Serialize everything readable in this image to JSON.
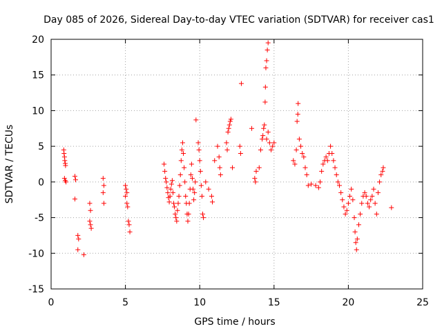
{
  "chart_data": {
    "type": "scatter",
    "title": "Day 085 of 2026, Sidereal Day-to-day VTEC variation (SDTVAR) for receiver cas1",
    "xlabel": "GPS time / hours",
    "ylabel": "SDTVAR / TECUs",
    "xlim": [
      0,
      25
    ],
    "ylim": [
      -15,
      20
    ],
    "xticks": [
      0,
      5,
      10,
      15,
      20,
      25
    ],
    "yticks": [
      -15,
      -10,
      -5,
      0,
      5,
      10,
      15,
      20
    ],
    "xtick_labels": [
      "0",
      "5",
      "10",
      "15",
      "20",
      "25"
    ],
    "ytick_labels": [
      "-15",
      "-10",
      "-5",
      "0",
      "5",
      "10",
      "15",
      "20"
    ],
    "grid": true,
    "marker": "+",
    "series": [
      {
        "name": "SDTVAR",
        "color": "#ff0000",
        "points": [
          [
            0.85,
            4.5
          ],
          [
            0.87,
            4.0
          ],
          [
            0.9,
            3.5
          ],
          [
            0.92,
            3.0
          ],
          [
            0.95,
            2.6
          ],
          [
            0.97,
            2.3
          ],
          [
            0.9,
            0.5
          ],
          [
            0.95,
            0.2
          ],
          [
            1.0,
            0.0
          ],
          [
            1.6,
            0.8
          ],
          [
            1.65,
            0.3
          ],
          [
            1.6,
            -2.4
          ],
          [
            1.8,
            -7.5
          ],
          [
            1.85,
            -8.0
          ],
          [
            1.8,
            -9.5
          ],
          [
            2.2,
            -10.2
          ],
          [
            2.6,
            -3.0
          ],
          [
            2.65,
            -4.0
          ],
          [
            2.6,
            -5.5
          ],
          [
            2.65,
            -6.0
          ],
          [
            2.7,
            -6.5
          ],
          [
            3.5,
            0.5
          ],
          [
            3.55,
            -0.5
          ],
          [
            3.5,
            -1.5
          ],
          [
            3.55,
            -3.0
          ],
          [
            5.0,
            -0.5
          ],
          [
            5.05,
            -1.0
          ],
          [
            5.1,
            -1.5
          ],
          [
            5.0,
            -2.0
          ],
          [
            5.1,
            -3.0
          ],
          [
            5.15,
            -3.5
          ],
          [
            5.2,
            -5.5
          ],
          [
            5.25,
            -6.0
          ],
          [
            5.3,
            -7.0
          ],
          [
            7.6,
            2.5
          ],
          [
            7.65,
            1.5
          ],
          [
            7.7,
            0.5
          ],
          [
            7.75,
            0.0
          ],
          [
            7.8,
            -0.8
          ],
          [
            7.85,
            -1.5
          ],
          [
            7.9,
            -2.2
          ],
          [
            7.95,
            -2.8
          ],
          [
            8.0,
            -2.0
          ],
          [
            8.05,
            -1.0
          ],
          [
            8.1,
            -0.3
          ],
          [
            8.15,
            0.2
          ],
          [
            8.2,
            -1.5
          ],
          [
            8.25,
            -3.0
          ],
          [
            8.3,
            -3.5
          ],
          [
            8.35,
            -4.5
          ],
          [
            8.4,
            -5.0
          ],
          [
            8.45,
            -5.5
          ],
          [
            8.5,
            -4.0
          ],
          [
            8.55,
            -3.0
          ],
          [
            8.6,
            -2.0
          ],
          [
            8.65,
            -0.5
          ],
          [
            8.7,
            1.0
          ],
          [
            8.75,
            3.0
          ],
          [
            8.8,
            4.5
          ],
          [
            8.85,
            5.5
          ],
          [
            8.9,
            4.0
          ],
          [
            8.95,
            2.0
          ],
          [
            9.0,
            0.0
          ],
          [
            9.05,
            -2.0
          ],
          [
            9.1,
            -3.0
          ],
          [
            9.15,
            -4.5
          ],
          [
            9.2,
            -5.5
          ],
          [
            9.25,
            -4.5
          ],
          [
            9.3,
            -3.0
          ],
          [
            9.35,
            -1.0
          ],
          [
            9.4,
            1.0
          ],
          [
            9.45,
            2.5
          ],
          [
            9.5,
            0.5
          ],
          [
            9.55,
            -1.0
          ],
          [
            9.6,
            -2.5
          ],
          [
            9.65,
            -1.5
          ],
          [
            9.7,
            0.0
          ],
          [
            9.75,
            8.7
          ],
          [
            9.9,
            5.5
          ],
          [
            9.95,
            4.5
          ],
          [
            10.0,
            3.0
          ],
          [
            10.05,
            1.5
          ],
          [
            10.1,
            -0.5
          ],
          [
            10.15,
            -2.0
          ],
          [
            10.2,
            -4.5
          ],
          [
            10.25,
            -5.0
          ],
          [
            10.4,
            0.0
          ],
          [
            10.6,
            -1.0
          ],
          [
            10.8,
            -2.0
          ],
          [
            10.85,
            -2.8
          ],
          [
            11.0,
            3.0
          ],
          [
            11.2,
            5.0
          ],
          [
            11.3,
            3.5
          ],
          [
            11.35,
            2.0
          ],
          [
            11.4,
            1.0
          ],
          [
            11.8,
            5.5
          ],
          [
            11.85,
            4.5
          ],
          [
            11.9,
            7.0
          ],
          [
            11.95,
            7.5
          ],
          [
            12.0,
            8.0
          ],
          [
            12.05,
            8.5
          ],
          [
            12.1,
            8.8
          ],
          [
            12.2,
            2.0
          ],
          [
            12.7,
            5.0
          ],
          [
            12.75,
            4.0
          ],
          [
            12.8,
            13.8
          ],
          [
            13.5,
            7.5
          ],
          [
            13.7,
            0.5
          ],
          [
            13.75,
            0.0
          ],
          [
            13.8,
            1.5
          ],
          [
            14.0,
            2.0
          ],
          [
            14.1,
            4.5
          ],
          [
            14.2,
            6.0
          ],
          [
            14.25,
            6.5
          ],
          [
            14.3,
            7.5
          ],
          [
            14.35,
            8.0
          ],
          [
            14.4,
            11.2
          ],
          [
            14.42,
            13.3
          ],
          [
            14.45,
            16.0
          ],
          [
            14.5,
            17.0
          ],
          [
            14.55,
            18.5
          ],
          [
            14.6,
            19.5
          ],
          [
            14.5,
            6.0
          ],
          [
            14.6,
            7.0
          ],
          [
            14.7,
            5.5
          ],
          [
            14.8,
            4.5
          ],
          [
            14.9,
            5.0
          ],
          [
            15.0,
            5.5
          ],
          [
            16.3,
            3.0
          ],
          [
            16.4,
            2.5
          ],
          [
            16.5,
            4.5
          ],
          [
            16.55,
            8.5
          ],
          [
            16.6,
            9.5
          ],
          [
            16.62,
            11.0
          ],
          [
            16.7,
            6.0
          ],
          [
            16.8,
            5.0
          ],
          [
            16.9,
            4.0
          ],
          [
            17.0,
            3.5
          ],
          [
            17.1,
            2.0
          ],
          [
            17.2,
            1.0
          ],
          [
            17.3,
            -0.5
          ],
          [
            17.5,
            -0.3
          ],
          [
            17.8,
            -0.5
          ],
          [
            18.0,
            -0.8
          ],
          [
            18.1,
            0.0
          ],
          [
            18.2,
            1.5
          ],
          [
            18.3,
            2.5
          ],
          [
            18.4,
            3.0
          ],
          [
            18.5,
            3.5
          ],
          [
            18.6,
            3.0
          ],
          [
            18.7,
            4.0
          ],
          [
            18.8,
            5.0
          ],
          [
            18.9,
            4.0
          ],
          [
            19.0,
            3.0
          ],
          [
            19.1,
            2.0
          ],
          [
            19.2,
            1.0
          ],
          [
            19.3,
            0.0
          ],
          [
            19.4,
            -0.5
          ],
          [
            19.5,
            -1.5
          ],
          [
            19.6,
            -2.5
          ],
          [
            19.7,
            -3.5
          ],
          [
            19.8,
            -4.5
          ],
          [
            19.9,
            -4.0
          ],
          [
            20.0,
            -3.0
          ],
          [
            20.1,
            -2.0
          ],
          [
            20.2,
            -1.0
          ],
          [
            20.3,
            -2.5
          ],
          [
            20.4,
            -5.0
          ],
          [
            20.45,
            -7.0
          ],
          [
            20.5,
            -8.5
          ],
          [
            20.55,
            -9.5
          ],
          [
            20.6,
            -8.0
          ],
          [
            20.7,
            -6.0
          ],
          [
            20.8,
            -4.5
          ],
          [
            20.9,
            -3.0
          ],
          [
            21.0,
            -2.0
          ],
          [
            21.1,
            -1.5
          ],
          [
            21.2,
            -2.0
          ],
          [
            21.3,
            -3.0
          ],
          [
            21.4,
            -3.5
          ],
          [
            21.5,
            -2.5
          ],
          [
            21.6,
            -2.0
          ],
          [
            21.7,
            -1.0
          ],
          [
            21.8,
            -3.0
          ],
          [
            21.9,
            -4.5
          ],
          [
            22.0,
            -1.5
          ],
          [
            22.1,
            0.0
          ],
          [
            22.2,
            1.0
          ],
          [
            22.3,
            1.5
          ],
          [
            22.35,
            2.0
          ],
          [
            22.9,
            -3.6
          ]
        ]
      }
    ]
  }
}
